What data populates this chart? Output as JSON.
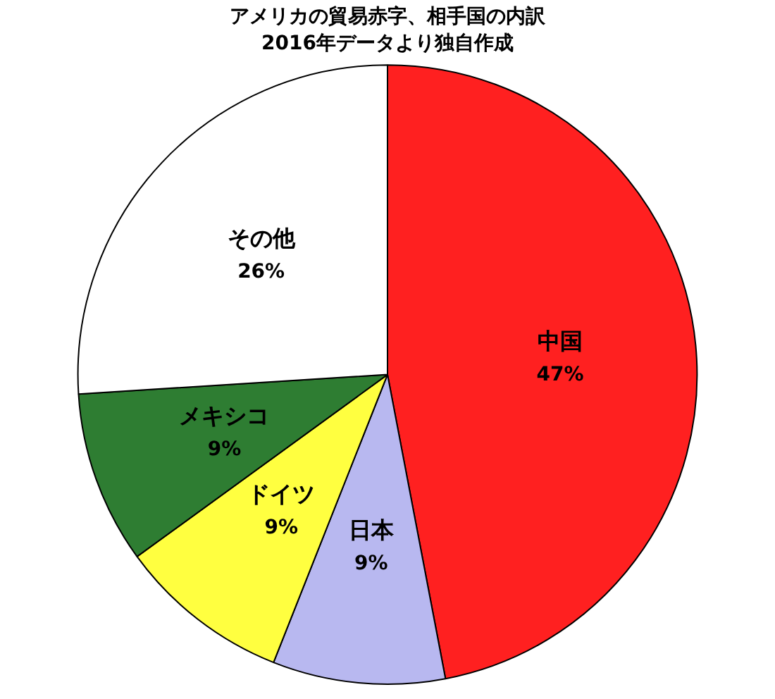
{
  "chart_data": {
    "type": "pie",
    "title": "アメリカの貿易赤字、相手国の内訳",
    "subtitle": "2016年データより独自作成",
    "categories": [
      "中国",
      "日本",
      "ドイツ",
      "メキシコ",
      "その他"
    ],
    "values": [
      47,
      9,
      9,
      9,
      26
    ],
    "value_labels": [
      "47%",
      "9%",
      "9%",
      "9%",
      "26%"
    ],
    "colors": [
      "#ff2020",
      "#b8b8f0",
      "#ffff40",
      "#2e7d32",
      "#ffffff"
    ],
    "legend": false
  }
}
